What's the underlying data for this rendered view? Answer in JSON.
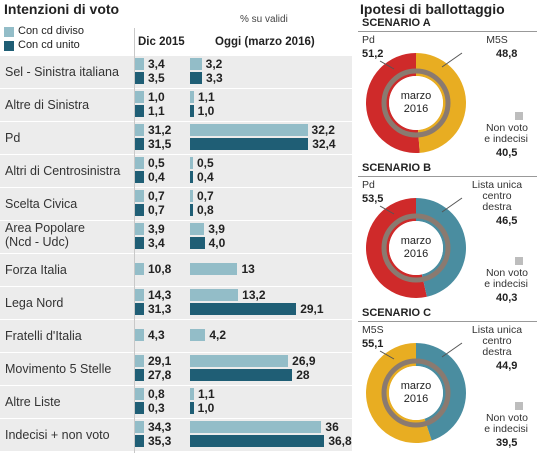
{
  "colors": {
    "diviso": "#93bdc8",
    "unito": "#1f5e75",
    "pd": "#cf2a2a",
    "m5s": "#e8ad22",
    "cdx": "#4a8da0",
    "gray": "#bdbdbd"
  },
  "left_panel": {
    "title": "Intenzioni di voto",
    "legend_diviso": "Con cd diviso",
    "legend_unito": "Con cd unito",
    "col_dic": "Dic 2015",
    "col_pct": "% su validi",
    "col_oggi": "Oggi (marzo 2016)"
  },
  "right_panel": {
    "title": "Ipotesi di ballottaggio"
  },
  "chart_data": [
    {
      "type": "bar",
      "title": "Intenzioni di voto",
      "series": [
        {
          "name": "Con cd diviso"
        },
        {
          "name": "Con cd unito"
        }
      ],
      "rows": [
        {
          "party": "Sel - Sinistra italiana",
          "dic": [
            "3,4",
            "3,5"
          ],
          "oggi": [
            "3,2",
            "3,3"
          ],
          "vals": [
            3.2,
            3.3
          ]
        },
        {
          "party": "Altre di Sinistra",
          "dic": [
            "1,0",
            "1,1"
          ],
          "oggi": [
            "1,1",
            "1,0"
          ],
          "vals": [
            1.1,
            1.0
          ]
        },
        {
          "party": "Pd",
          "dic": [
            "31,2",
            "31,5"
          ],
          "oggi": [
            "32,2",
            "32,4"
          ],
          "vals": [
            32.2,
            32.4
          ]
        },
        {
          "party": "Altri di Centrosinistra",
          "dic": [
            "0,5",
            "0,4"
          ],
          "oggi": [
            "0,5",
            "0,4"
          ],
          "vals": [
            0.5,
            0.4
          ]
        },
        {
          "party": "Scelta Civica",
          "dic": [
            "0,7",
            "0,7"
          ],
          "oggi": [
            "0,7",
            "0,8"
          ],
          "vals": [
            0.7,
            0.8
          ]
        },
        {
          "party": "Area Popolare",
          "party2": "(Ncd - Udc)",
          "dic": [
            "3,9",
            "3,4"
          ],
          "oggi": [
            "3,9",
            "4,0"
          ],
          "vals": [
            3.9,
            4.0
          ]
        },
        {
          "party": "Forza Italia",
          "dic": [
            "10,8"
          ],
          "oggi": [
            "13"
          ],
          "vals": [
            13
          ]
        },
        {
          "party": "Lega Nord",
          "dic": [
            "14,3",
            "31,3"
          ],
          "oggi": [
            "13,2",
            "29,1"
          ],
          "vals": [
            13.2,
            29.1
          ]
        },
        {
          "party": "Fratelli d'Italia",
          "dic": [
            "4,3"
          ],
          "oggi": [
            "4,2"
          ],
          "vals": [
            4.2
          ]
        },
        {
          "party": "Movimento 5 Stelle",
          "dic": [
            "29,1",
            "27,8"
          ],
          "oggi": [
            "26,9",
            "28"
          ],
          "vals": [
            26.9,
            28
          ]
        },
        {
          "party": "Altre Liste",
          "dic": [
            "0,8",
            "0,3"
          ],
          "oggi": [
            "1,1",
            "1,0"
          ],
          "vals": [
            1.1,
            1.0
          ]
        },
        {
          "party": "Indecisi + non voto",
          "dic": [
            "34,3",
            "35,3"
          ],
          "oggi": [
            "36",
            "36,8"
          ],
          "vals": [
            36,
            36.8
          ]
        }
      ]
    },
    {
      "type": "pie",
      "title": "SCENARIO A",
      "center": [
        "marzo",
        "2016"
      ],
      "a": {
        "label": "Pd",
        "value": 51.2,
        "text": "51,2",
        "color": "pd"
      },
      "b": {
        "label": "M5S",
        "value": 48.8,
        "text": "48,8",
        "color": "m5s"
      },
      "abst_label": [
        "Non voto",
        "e indecisi"
      ],
      "abst_text": "40,5"
    },
    {
      "type": "pie",
      "title": "SCENARIO B",
      "center": [
        "marzo",
        "2016"
      ],
      "a": {
        "label": "Pd",
        "value": 53.5,
        "text": "53,5",
        "color": "pd"
      },
      "b": {
        "label": [
          "Lista unica",
          "centro",
          "destra"
        ],
        "value": 46.5,
        "text": "46,5",
        "color": "cdx"
      },
      "abst_label": [
        "Non voto",
        "e indecisi"
      ],
      "abst_text": "40,3"
    },
    {
      "type": "pie",
      "title": "SCENARIO C",
      "center": [
        "marzo",
        "2016"
      ],
      "a": {
        "label": "M5S",
        "value": 55.1,
        "text": "55,1",
        "color": "m5s"
      },
      "b": {
        "label": [
          "Lista unica",
          "centro",
          "destra"
        ],
        "value": 44.9,
        "text": "44,9",
        "color": "cdx"
      },
      "abst_label": [
        "Non voto",
        "e indecisi"
      ],
      "abst_text": "39,5"
    }
  ]
}
